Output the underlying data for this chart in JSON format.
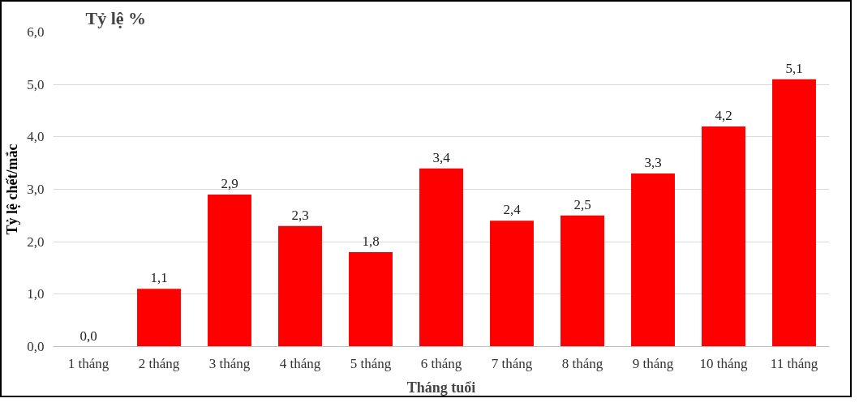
{
  "chart_data": {
    "type": "bar",
    "title": "Tỷ lệ %",
    "xlabel": "Tháng tuổi",
    "ylabel": "Tỷ lệ chết/mắc",
    "categories": [
      "1 tháng",
      "2 tháng",
      "3 tháng",
      "4 tháng",
      "5 tháng",
      "6 tháng",
      "7 tháng",
      "8 tháng",
      "9 tháng",
      "10 tháng",
      "11 tháng"
    ],
    "values": [
      0.0,
      1.1,
      2.9,
      2.3,
      1.8,
      3.4,
      2.4,
      2.5,
      3.3,
      4.2,
      5.1
    ],
    "value_labels": [
      "0,0",
      "1,1",
      "2,9",
      "2,3",
      "1,8",
      "3,4",
      "2,4",
      "2,5",
      "3,3",
      "4,2",
      "5,1"
    ],
    "color": "#ff0000",
    "ylim": [
      0,
      6
    ],
    "yticks": [
      {
        "value": 0,
        "label": "0,0"
      },
      {
        "value": 1,
        "label": "1,0"
      },
      {
        "value": 2,
        "label": "2,0"
      },
      {
        "value": 3,
        "label": "3,0"
      },
      {
        "value": 4,
        "label": "4,0"
      },
      {
        "value": 5,
        "label": "5,0"
      },
      {
        "value": 6,
        "label": "6,0"
      }
    ],
    "grid": "y"
  }
}
